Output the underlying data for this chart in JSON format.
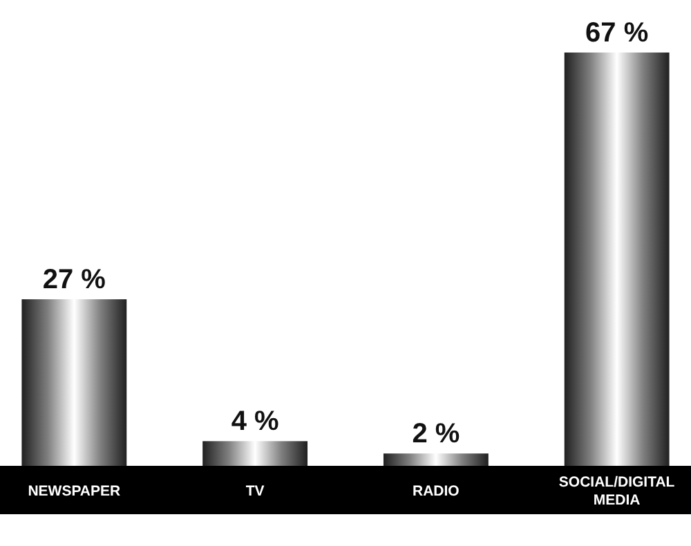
{
  "chart_data": {
    "type": "bar",
    "categories": [
      "NEWSPAPER",
      "TV",
      "RADIO",
      "SOCIAL/DIGITAL MEDIA"
    ],
    "values": [
      27,
      4,
      2,
      67
    ],
    "value_labels": [
      "27 %",
      "4 %",
      "2 %",
      "67 %"
    ],
    "color": "#808080"
  }
}
